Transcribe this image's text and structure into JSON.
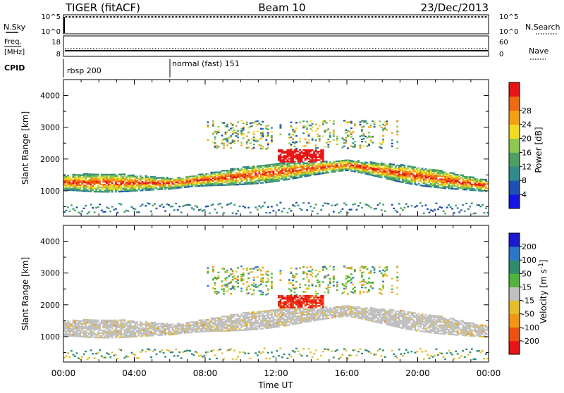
{
  "header": {
    "left": "TIGER (fitACF)",
    "center": "Beam 10",
    "right": "23/Dec/2013"
  },
  "panels": {
    "nsky": {
      "left_label": "N.Sky",
      "right_label": "N.Search",
      "left_ticks": [
        "10^5",
        "10^0"
      ],
      "right_ticks": [
        "10^5",
        "10^0"
      ]
    },
    "freq": {
      "left_label_1": "Freq.",
      "left_label_2": "[MHz]",
      "right_label": "Nave",
      "left_ticks": [
        "18",
        "8"
      ],
      "right_ticks": [
        "60",
        "0"
      ]
    },
    "cpid": {
      "label": "CPID",
      "segments": [
        "rbsp 200",
        "normal (fast) 151"
      ]
    }
  },
  "x_ticks": [
    "00:00",
    "04:00",
    "08:00",
    "12:00",
    "16:00",
    "20:00",
    "00:00"
  ],
  "colors": {
    "power_scale": [
      "#1414e6",
      "#1e4fb4",
      "#2e8c8c",
      "#4ca064",
      "#8cc850",
      "#f0dc1e",
      "#f5a014",
      "#f06a12",
      "#e81414"
    ],
    "velocity_scale": [
      "#1a1ad2",
      "#2878c8",
      "#2e8c6c",
      "#50b43c",
      "#c0c0c0",
      "#e6be28",
      "#f09614",
      "#f05012",
      "#e81414"
    ],
    "ground_scatter": "#b4b4b4"
  },
  "chart_data": [
    {
      "type": "heatmap",
      "title": "",
      "xlabel": "Time UT",
      "ylabel": "Slant Range [km]",
      "xlim": [
        "00:00",
        "24:00"
      ],
      "ylim": [
        200,
        4500
      ],
      "yticks": [
        "1000",
        "2000",
        "3000",
        "4000"
      ],
      "colorbar": {
        "label": "Power [dB]",
        "range": [
          0,
          32
        ],
        "ticks": [
          "4",
          "8",
          "12",
          "16",
          "20",
          "24",
          "28"
        ]
      },
      "features": [
        {
          "description": "main scatter band",
          "time_range": [
            "00:00",
            "24:00"
          ],
          "range_km_start": [
            1250,
            1150
          ],
          "range_km_peak": 1800,
          "peak_time": "16:00",
          "power_db": [
            8,
            28
          ]
        },
        {
          "description": "upper scatter",
          "time_range": [
            "08:00",
            "19:00"
          ],
          "range_km": [
            2300,
            3200
          ],
          "power_db": [
            4,
            24
          ]
        }
      ]
    },
    {
      "type": "heatmap",
      "title": "",
      "xlabel": "Time UT",
      "ylabel": "Slant Range [km]",
      "xlim": [
        "00:00",
        "24:00"
      ],
      "ylim": [
        200,
        4500
      ],
      "yticks": [
        "1000",
        "2000",
        "3000",
        "4000"
      ],
      "colorbar": {
        "label": "Velocity [m s^-1]",
        "range": [
          -250,
          250
        ],
        "ticks": [
          "200",
          "100",
          "50",
          "15",
          "-15",
          "-50",
          "-100",
          "-200"
        ]
      },
      "features": [
        {
          "description": "ground scatter band",
          "time_range": [
            "00:00",
            "24:00"
          ],
          "range_km": [
            900,
            1800
          ],
          "velocity_ms": [
            -15,
            15
          ]
        },
        {
          "description": "strong negative velocity patch",
          "time_range": [
            "12:00",
            "14:30"
          ],
          "range_km": [
            1900,
            2300
          ],
          "velocity_ms": [
            -200,
            -100
          ]
        }
      ]
    }
  ]
}
